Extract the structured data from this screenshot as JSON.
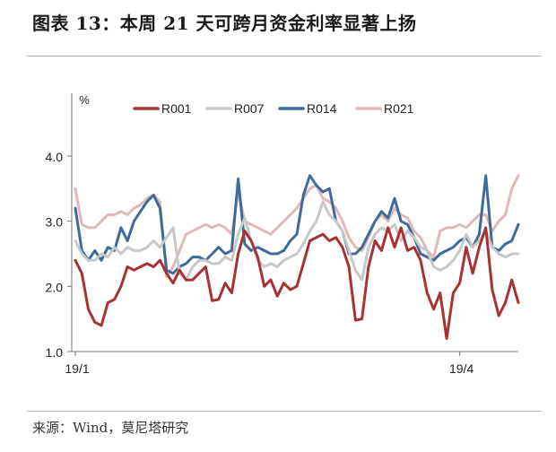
{
  "figure": {
    "title": "图表 13：本周 21 天可跨月资金利率显著上扬",
    "source": "来源：Wind，莫尼塔研究"
  },
  "chart_data": {
    "type": "line",
    "ylabel": "%",
    "ylim": [
      1.0,
      4.0
    ],
    "yticks": [
      "1.0",
      "2.0",
      "3.0",
      "4.0"
    ],
    "xticks": [
      {
        "label": "19/1",
        "index": 0
      },
      {
        "label": "19/4",
        "index": 59
      }
    ],
    "legend_position": "top",
    "grid": false,
    "series": [
      {
        "name": "R001",
        "color": "#a83232",
        "values": [
          2.4,
          2.2,
          1.65,
          1.45,
          1.4,
          1.75,
          1.8,
          2.0,
          2.3,
          2.25,
          2.3,
          2.35,
          2.3,
          2.4,
          2.2,
          2.05,
          2.25,
          2.1,
          2.1,
          2.2,
          2.3,
          1.78,
          1.8,
          2.05,
          1.9,
          2.5,
          2.85,
          2.7,
          2.45,
          2.0,
          2.1,
          1.85,
          2.05,
          1.95,
          2.0,
          2.35,
          2.7,
          2.75,
          2.8,
          2.7,
          2.75,
          2.6,
          2.3,
          1.48,
          1.5,
          2.3,
          2.7,
          2.55,
          2.9,
          2.6,
          2.9,
          2.55,
          2.6,
          2.4,
          1.9,
          1.65,
          1.9,
          1.2,
          1.9,
          2.05,
          2.6,
          2.2,
          2.6,
          2.9,
          1.95,
          1.55,
          1.75,
          2.1,
          1.75
        ]
      },
      {
        "name": "R007",
        "color": "#c8c8c8",
        "values": [
          2.7,
          2.5,
          2.4,
          2.4,
          2.5,
          2.45,
          2.6,
          2.5,
          2.6,
          2.55,
          2.55,
          2.6,
          2.7,
          2.6,
          2.75,
          2.9,
          2.2,
          2.1,
          2.3,
          2.4,
          2.4,
          2.35,
          2.35,
          2.45,
          2.4,
          2.8,
          3.05,
          2.7,
          2.4,
          2.3,
          2.35,
          2.3,
          2.4,
          2.45,
          2.5,
          2.65,
          2.85,
          3.0,
          3.3,
          3.1,
          3.0,
          2.85,
          2.55,
          2.25,
          2.1,
          2.6,
          2.8,
          2.9,
          2.85,
          2.95,
          2.7,
          2.85,
          2.75,
          2.6,
          2.55,
          2.3,
          2.25,
          2.3,
          2.4,
          2.55,
          2.8,
          2.6,
          2.7,
          2.85,
          2.6,
          2.5,
          2.45,
          2.5,
          2.5
        ]
      },
      {
        "name": "R014",
        "color": "#3f6a9c",
        "values": [
          3.2,
          2.55,
          2.4,
          2.55,
          2.4,
          2.6,
          2.55,
          2.9,
          2.7,
          3.0,
          3.15,
          3.3,
          3.4,
          3.2,
          2.25,
          2.2,
          2.3,
          2.35,
          2.45,
          2.45,
          2.4,
          2.5,
          2.6,
          2.5,
          2.55,
          3.65,
          2.65,
          2.55,
          2.6,
          2.55,
          2.5,
          2.5,
          2.55,
          2.7,
          2.8,
          3.4,
          3.7,
          3.55,
          3.45,
          3.5,
          3.0,
          2.85,
          2.5,
          2.5,
          2.6,
          2.8,
          3.0,
          3.15,
          3.05,
          3.35,
          3.0,
          2.95,
          2.75,
          2.5,
          2.45,
          2.4,
          2.5,
          2.55,
          2.6,
          2.7,
          2.75,
          2.6,
          2.8,
          3.7,
          2.6,
          2.55,
          2.65,
          2.7,
          2.95
        ]
      },
      {
        "name": "R021",
        "color": "#e0b8b8",
        "values": [
          3.5,
          2.95,
          2.9,
          2.9,
          3.0,
          3.1,
          3.1,
          3.15,
          3.1,
          3.2,
          3.25,
          3.35,
          3.4,
          3.3,
          2.15,
          2.3,
          2.55,
          2.8,
          2.85,
          2.9,
          2.95,
          2.9,
          2.95,
          2.9,
          2.8,
          3.45,
          3.0,
          2.95,
          2.9,
          2.85,
          2.8,
          2.9,
          3.0,
          3.1,
          3.2,
          3.35,
          3.5,
          3.55,
          3.35,
          3.3,
          3.2,
          3.0,
          2.75,
          2.6,
          2.55,
          2.75,
          3.0,
          3.1,
          3.0,
          3.2,
          3.1,
          3.05,
          2.85,
          2.75,
          2.55,
          2.45,
          2.85,
          2.9,
          2.9,
          2.95,
          2.9,
          3.0,
          3.1,
          3.1,
          2.85,
          3.0,
          3.1,
          3.5,
          3.7
        ]
      }
    ]
  }
}
